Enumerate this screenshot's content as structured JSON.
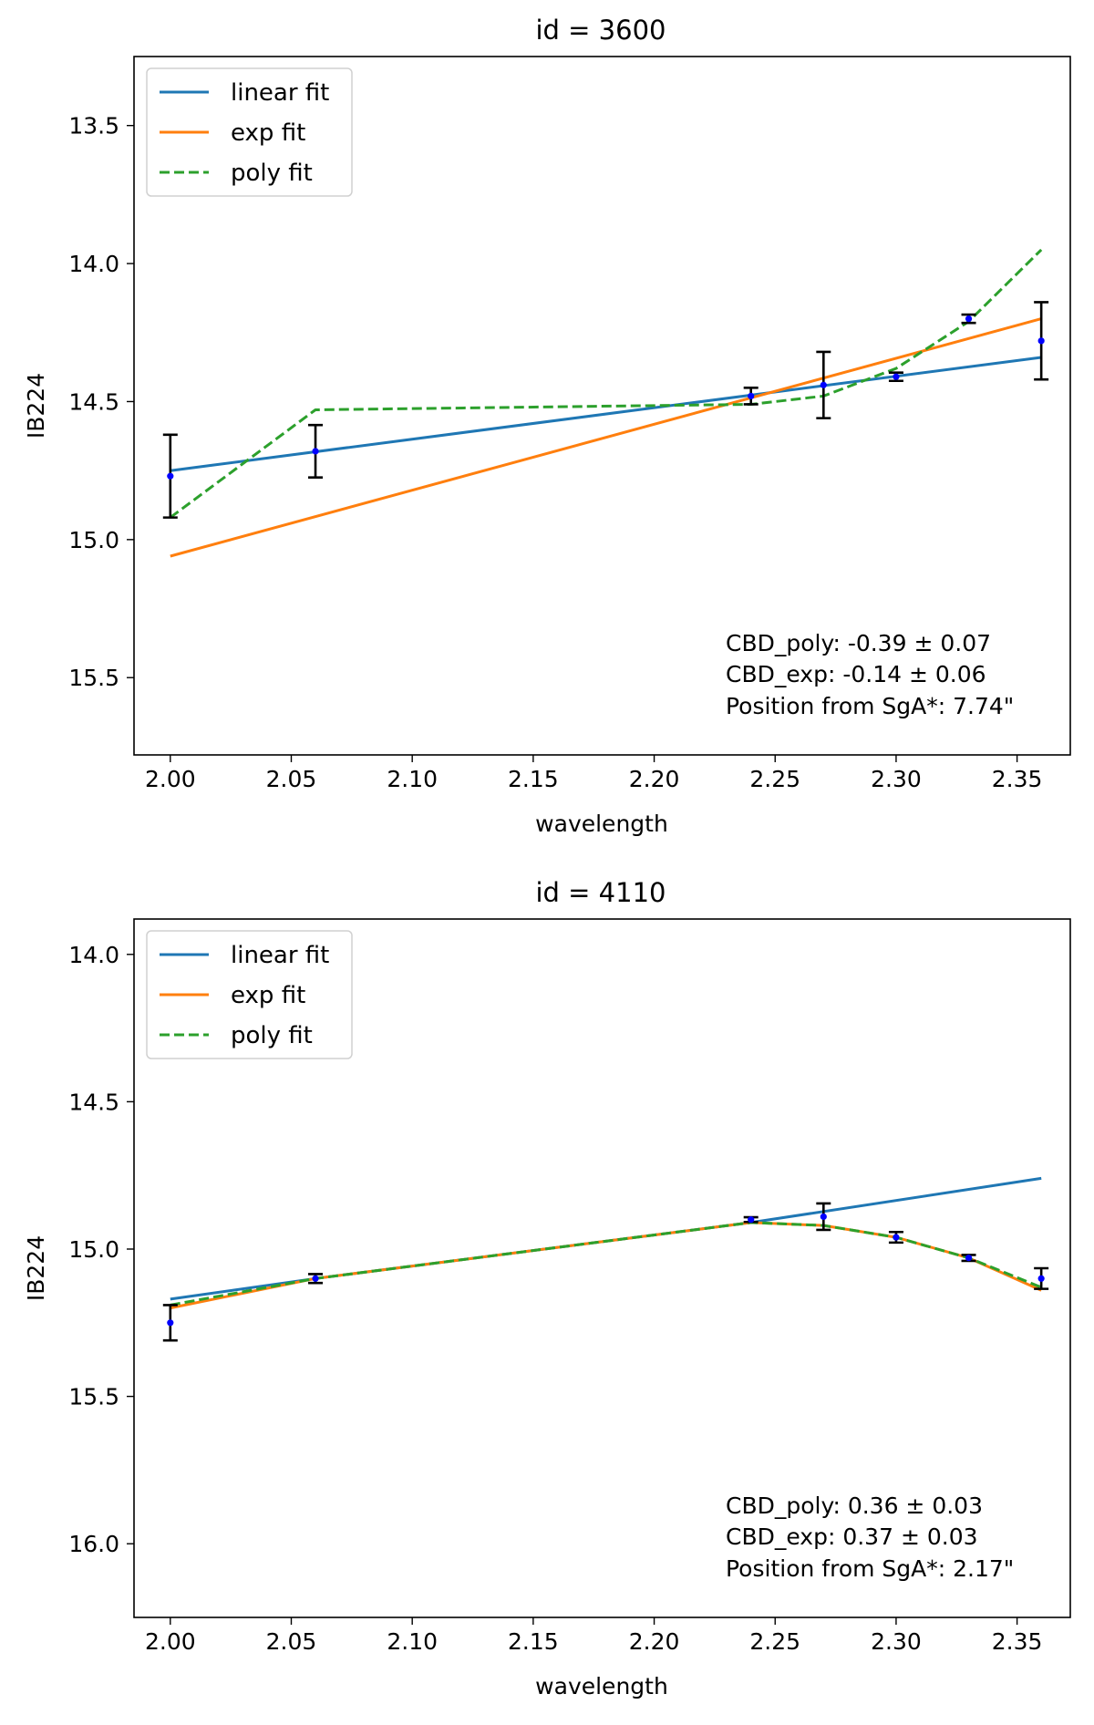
{
  "chart_data": [
    {
      "type": "line",
      "title": "id = 3600",
      "xlabel": "wavelength",
      "ylabel": "IB224",
      "xlim": [
        1.985,
        2.372
      ],
      "ylim": [
        15.78,
        13.25
      ],
      "y_inverted": true,
      "xticks": [
        "2.00",
        "2.05",
        "2.10",
        "2.15",
        "2.20",
        "2.25",
        "2.30",
        "2.35"
      ],
      "yticks": [
        "13.5",
        "14.0",
        "14.5",
        "15.0",
        "15.5"
      ],
      "legend": [
        "linear fit",
        "exp fit",
        "poly fit"
      ],
      "legend_location": "upper-left",
      "data_points": {
        "x": [
          2.0,
          2.06,
          2.24,
          2.27,
          2.3,
          2.33,
          2.36
        ],
        "y": [
          14.77,
          14.68,
          14.48,
          14.44,
          14.41,
          14.2,
          14.28
        ],
        "yerr": [
          0.15,
          0.095,
          0.03,
          0.12,
          0.015,
          0.015,
          0.14
        ]
      },
      "series": [
        {
          "name": "linear fit",
          "color": "#1f77b4",
          "style": "solid",
          "x": [
            2.0,
            2.36
          ],
          "y": [
            14.75,
            14.34
          ]
        },
        {
          "name": "exp fit",
          "color": "#ff7f0e",
          "style": "solid",
          "x": [
            2.0,
            2.36
          ],
          "y": [
            15.06,
            14.2
          ]
        },
        {
          "name": "poly fit",
          "color": "#2ca02c",
          "style": "dashed",
          "x": [
            2.0,
            2.06,
            2.24,
            2.27,
            2.3,
            2.33,
            2.36
          ],
          "y": [
            14.92,
            14.53,
            14.51,
            14.48,
            14.38,
            14.21,
            13.95
          ]
        }
      ],
      "annotations": [
        "CBD_poly: -0.39 ± 0.07",
        "CBD_exp: -0.14 ± 0.06",
        "Position from SgA*: 7.74\""
      ]
    },
    {
      "type": "line",
      "title": "id = 4110",
      "xlabel": "wavelength",
      "ylabel": "IB224",
      "xlim": [
        1.985,
        2.372
      ],
      "ylim": [
        16.25,
        13.88
      ],
      "y_inverted": true,
      "xticks": [
        "2.00",
        "2.05",
        "2.10",
        "2.15",
        "2.20",
        "2.25",
        "2.30",
        "2.35"
      ],
      "yticks": [
        "14.0",
        "14.5",
        "15.0",
        "15.5",
        "16.0"
      ],
      "legend": [
        "linear fit",
        "exp fit",
        "poly fit"
      ],
      "legend_location": "upper-left",
      "data_points": {
        "x": [
          2.0,
          2.06,
          2.24,
          2.27,
          2.3,
          2.33,
          2.36
        ],
        "y": [
          15.25,
          15.1,
          14.9,
          14.89,
          14.96,
          15.03,
          15.1
        ],
        "yerr": [
          0.06,
          0.015,
          0.008,
          0.045,
          0.018,
          0.01,
          0.035
        ]
      },
      "series": [
        {
          "name": "linear fit",
          "color": "#1f77b4",
          "style": "solid",
          "x": [
            2.0,
            2.06,
            2.24,
            2.36
          ],
          "y": [
            15.17,
            15.1,
            14.91,
            14.76
          ]
        },
        {
          "name": "exp fit",
          "color": "#ff7f0e",
          "style": "solid",
          "x": [
            2.0,
            2.06,
            2.24,
            2.27,
            2.3,
            2.33,
            2.36
          ],
          "y": [
            15.2,
            15.1,
            14.91,
            14.92,
            14.96,
            15.03,
            15.14
          ]
        },
        {
          "name": "poly fit",
          "color": "#2ca02c",
          "style": "dashed",
          "x": [
            2.0,
            2.06,
            2.24,
            2.27,
            2.3,
            2.33,
            2.36
          ],
          "y": [
            15.19,
            15.1,
            14.91,
            14.92,
            14.96,
            15.03,
            15.13
          ]
        }
      ],
      "annotations": [
        "CBD_poly: 0.36 ± 0.03",
        "CBD_exp: 0.37 ± 0.03",
        "Position from SgA*: 2.17\""
      ]
    }
  ]
}
